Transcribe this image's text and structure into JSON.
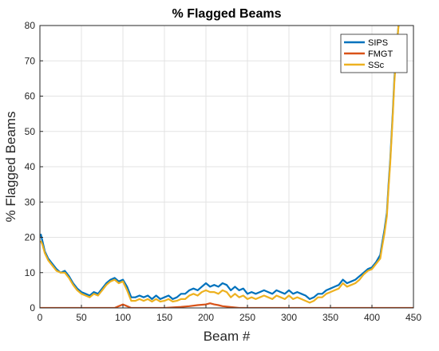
{
  "chart_data": {
    "type": "line",
    "title": "% Flagged Beams",
    "xlabel": "Beam #",
    "ylabel": "% Flagged Beams",
    "xlim": [
      0,
      450
    ],
    "ylim": [
      0,
      80
    ],
    "xticks": [
      0,
      50,
      100,
      150,
      200,
      250,
      300,
      350,
      400,
      450
    ],
    "yticks": [
      0,
      10,
      20,
      30,
      40,
      50,
      60,
      70,
      80
    ],
    "grid": true,
    "legend_position": "top-right",
    "series": [
      {
        "name": "SIPS",
        "color": "#0072BD",
        "x": [
          1,
          3,
          6,
          10,
          15,
          20,
          25,
          30,
          35,
          40,
          45,
          50,
          55,
          60,
          65,
          70,
          75,
          80,
          85,
          90,
          95,
          100,
          105,
          110,
          115,
          120,
          125,
          130,
          135,
          140,
          145,
          150,
          155,
          160,
          165,
          170,
          175,
          180,
          185,
          190,
          195,
          200,
          205,
          210,
          215,
          220,
          225,
          230,
          235,
          240,
          245,
          250,
          255,
          260,
          265,
          270,
          275,
          280,
          285,
          290,
          295,
          300,
          305,
          310,
          315,
          320,
          325,
          330,
          335,
          340,
          345,
          350,
          355,
          360,
          365,
          370,
          375,
          380,
          385,
          390,
          395,
          400,
          405,
          410,
          412,
          415,
          418,
          420,
          422,
          425,
          427,
          430,
          432
        ],
        "y": [
          21,
          19,
          16,
          14,
          12.5,
          11,
          10,
          10.5,
          9,
          7,
          5.5,
          4.5,
          4,
          3.5,
          4.5,
          4,
          5.5,
          7,
          8,
          8.5,
          7.5,
          8,
          6,
          3,
          3,
          3.5,
          3,
          3.5,
          2.5,
          3.5,
          2.5,
          3,
          3.5,
          2.5,
          3,
          4,
          4,
          5,
          5.5,
          5,
          6,
          7,
          6,
          6.5,
          6,
          7,
          6.5,
          5,
          6,
          5,
          5.5,
          4,
          4.5,
          4,
          4.5,
          5,
          4.5,
          4,
          5,
          4.5,
          4,
          5,
          4,
          4.5,
          4,
          3.5,
          2.5,
          3,
          4,
          4,
          5,
          5.5,
          6,
          6.5,
          8,
          7,
          7.5,
          8,
          9,
          10,
          11,
          11.5,
          13,
          15,
          18,
          22,
          27,
          35,
          42,
          55,
          65,
          75,
          80
        ]
      },
      {
        "name": "FMGT",
        "color": "#D95319",
        "x": [
          0,
          10,
          50,
          90,
          95,
          100,
          105,
          110,
          150,
          170,
          180,
          190,
          200,
          205,
          210,
          215,
          220,
          240,
          260,
          300,
          350,
          400,
          450
        ],
        "y": [
          0,
          0,
          0,
          0,
          0.5,
          1,
          0.5,
          0,
          0,
          0.3,
          0.5,
          0.8,
          1,
          1.3,
          1,
          0.8,
          0.5,
          0,
          0,
          0,
          0,
          0,
          0
        ]
      },
      {
        "name": "SSc",
        "color": "#EDB120",
        "x": [
          1,
          3,
          6,
          10,
          15,
          20,
          25,
          30,
          35,
          40,
          45,
          50,
          55,
          60,
          65,
          70,
          75,
          80,
          85,
          90,
          95,
          100,
          105,
          110,
          115,
          120,
          125,
          130,
          135,
          140,
          145,
          150,
          155,
          160,
          165,
          170,
          175,
          180,
          185,
          190,
          195,
          200,
          205,
          210,
          215,
          220,
          225,
          230,
          235,
          240,
          245,
          250,
          255,
          260,
          265,
          270,
          275,
          280,
          285,
          290,
          295,
          300,
          305,
          310,
          315,
          320,
          325,
          330,
          335,
          340,
          345,
          350,
          355,
          360,
          365,
          370,
          375,
          380,
          385,
          390,
          395,
          400,
          405,
          410,
          412,
          415,
          418,
          420,
          422,
          425,
          427,
          430,
          432
        ],
        "y": [
          19,
          18,
          15.5,
          13.5,
          12,
          10.5,
          10,
          10,
          8.5,
          6.5,
          5,
          4,
          3.5,
          3,
          4,
          3.5,
          5,
          6.5,
          7.5,
          8,
          7,
          7.5,
          5,
          2,
          2,
          2.5,
          2,
          2.5,
          1.8,
          2.5,
          1.8,
          2,
          2.5,
          1.8,
          2,
          2.5,
          2.5,
          3.5,
          4,
          3.5,
          4.5,
          5,
          4.5,
          4.5,
          4,
          5,
          4.5,
          3,
          4,
          3,
          3.5,
          2.5,
          3,
          2.5,
          3,
          3.5,
          3,
          2.5,
          3.5,
          3,
          2.5,
          3.5,
          2.5,
          3,
          2.5,
          2,
          1.5,
          2,
          3,
          3,
          4,
          4.5,
          5,
          5.5,
          7,
          6,
          6.5,
          7,
          8,
          9.5,
          10.5,
          11,
          12.5,
          14,
          17,
          21,
          26,
          34,
          41,
          54,
          64,
          74,
          80
        ]
      }
    ]
  }
}
